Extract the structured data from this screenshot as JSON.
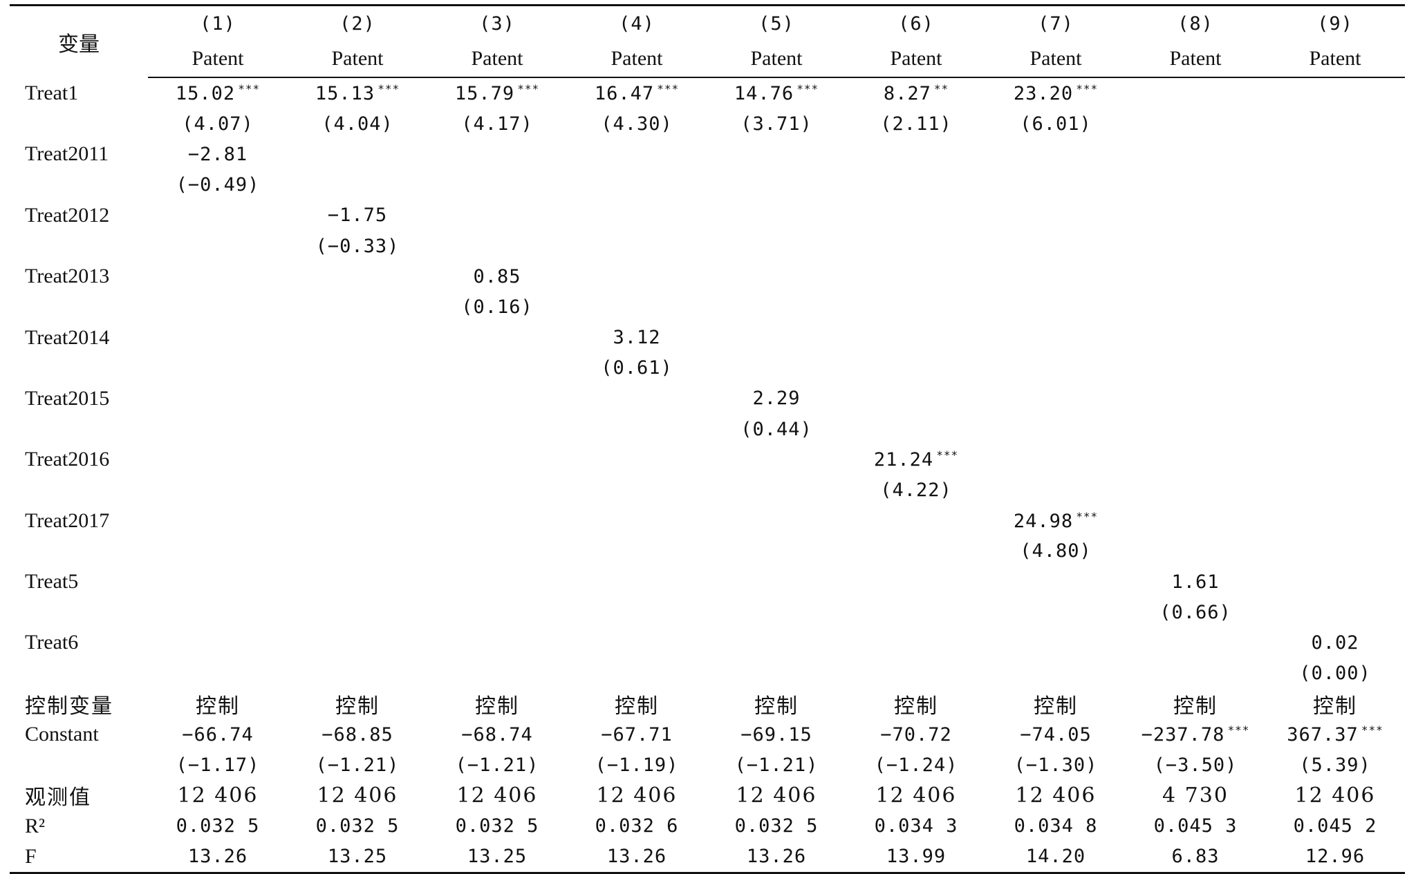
{
  "header": {
    "variable_label": "变量",
    "columns": [
      {
        "num": "(1)",
        "dep": "Patent"
      },
      {
        "num": "(2)",
        "dep": "Patent"
      },
      {
        "num": "(3)",
        "dep": "Patent"
      },
      {
        "num": "(4)",
        "dep": "Patent"
      },
      {
        "num": "(5)",
        "dep": "Patent"
      },
      {
        "num": "(6)",
        "dep": "Patent"
      },
      {
        "num": "(7)",
        "dep": "Patent"
      },
      {
        "num": "(8)",
        "dep": "Patent"
      },
      {
        "num": "(9)",
        "dep": "Patent"
      }
    ]
  },
  "rows": [
    {
      "label": "Treat1",
      "cells": [
        {
          "v": "15.02",
          "s": "***"
        },
        {
          "v": "15.13",
          "s": "***"
        },
        {
          "v": "15.79",
          "s": "***"
        },
        {
          "v": "16.47",
          "s": "***"
        },
        {
          "v": "14.76",
          "s": "***"
        },
        {
          "v": "8.27",
          "s": "**"
        },
        {
          "v": "23.20",
          "s": "***"
        },
        {
          "v": ""
        },
        {
          "v": ""
        }
      ]
    },
    {
      "label": "",
      "cells": [
        {
          "v": "(4.07)"
        },
        {
          "v": "(4.04)"
        },
        {
          "v": "(4.17)"
        },
        {
          "v": "(4.30)"
        },
        {
          "v": "(3.71)"
        },
        {
          "v": "(2.11)"
        },
        {
          "v": "(6.01)"
        },
        {
          "v": ""
        },
        {
          "v": ""
        }
      ]
    },
    {
      "label": "Treat2011",
      "cells": [
        {
          "v": "−2.81"
        },
        {
          "v": ""
        },
        {
          "v": ""
        },
        {
          "v": ""
        },
        {
          "v": ""
        },
        {
          "v": ""
        },
        {
          "v": ""
        },
        {
          "v": ""
        },
        {
          "v": ""
        }
      ]
    },
    {
      "label": "",
      "cells": [
        {
          "v": "(−0.49)"
        },
        {
          "v": ""
        },
        {
          "v": ""
        },
        {
          "v": ""
        },
        {
          "v": ""
        },
        {
          "v": ""
        },
        {
          "v": ""
        },
        {
          "v": ""
        },
        {
          "v": ""
        }
      ]
    },
    {
      "label": "Treat2012",
      "cells": [
        {
          "v": ""
        },
        {
          "v": "−1.75"
        },
        {
          "v": ""
        },
        {
          "v": ""
        },
        {
          "v": ""
        },
        {
          "v": ""
        },
        {
          "v": ""
        },
        {
          "v": ""
        },
        {
          "v": ""
        }
      ]
    },
    {
      "label": "",
      "cells": [
        {
          "v": ""
        },
        {
          "v": "(−0.33)"
        },
        {
          "v": ""
        },
        {
          "v": ""
        },
        {
          "v": ""
        },
        {
          "v": ""
        },
        {
          "v": ""
        },
        {
          "v": ""
        },
        {
          "v": ""
        }
      ]
    },
    {
      "label": "Treat2013",
      "cells": [
        {
          "v": ""
        },
        {
          "v": ""
        },
        {
          "v": "0.85"
        },
        {
          "v": ""
        },
        {
          "v": ""
        },
        {
          "v": ""
        },
        {
          "v": ""
        },
        {
          "v": ""
        },
        {
          "v": ""
        }
      ]
    },
    {
      "label": "",
      "cells": [
        {
          "v": ""
        },
        {
          "v": ""
        },
        {
          "v": "(0.16)"
        },
        {
          "v": ""
        },
        {
          "v": ""
        },
        {
          "v": ""
        },
        {
          "v": ""
        },
        {
          "v": ""
        },
        {
          "v": ""
        }
      ]
    },
    {
      "label": "Treat2014",
      "cells": [
        {
          "v": ""
        },
        {
          "v": ""
        },
        {
          "v": ""
        },
        {
          "v": "3.12"
        },
        {
          "v": ""
        },
        {
          "v": ""
        },
        {
          "v": ""
        },
        {
          "v": ""
        },
        {
          "v": ""
        }
      ]
    },
    {
      "label": "",
      "cells": [
        {
          "v": ""
        },
        {
          "v": ""
        },
        {
          "v": ""
        },
        {
          "v": "(0.61)"
        },
        {
          "v": ""
        },
        {
          "v": ""
        },
        {
          "v": ""
        },
        {
          "v": ""
        },
        {
          "v": ""
        }
      ]
    },
    {
      "label": "Treat2015",
      "cells": [
        {
          "v": ""
        },
        {
          "v": ""
        },
        {
          "v": ""
        },
        {
          "v": ""
        },
        {
          "v": "2.29"
        },
        {
          "v": ""
        },
        {
          "v": ""
        },
        {
          "v": ""
        },
        {
          "v": ""
        }
      ]
    },
    {
      "label": "",
      "cells": [
        {
          "v": ""
        },
        {
          "v": ""
        },
        {
          "v": ""
        },
        {
          "v": ""
        },
        {
          "v": "(0.44)"
        },
        {
          "v": ""
        },
        {
          "v": ""
        },
        {
          "v": ""
        },
        {
          "v": ""
        }
      ]
    },
    {
      "label": "Treat2016",
      "cells": [
        {
          "v": ""
        },
        {
          "v": ""
        },
        {
          "v": ""
        },
        {
          "v": ""
        },
        {
          "v": ""
        },
        {
          "v": "21.24",
          "s": "***"
        },
        {
          "v": ""
        },
        {
          "v": ""
        },
        {
          "v": ""
        }
      ]
    },
    {
      "label": "",
      "cells": [
        {
          "v": ""
        },
        {
          "v": ""
        },
        {
          "v": ""
        },
        {
          "v": ""
        },
        {
          "v": ""
        },
        {
          "v": "(4.22)"
        },
        {
          "v": ""
        },
        {
          "v": ""
        },
        {
          "v": ""
        }
      ]
    },
    {
      "label": "Treat2017",
      "cells": [
        {
          "v": ""
        },
        {
          "v": ""
        },
        {
          "v": ""
        },
        {
          "v": ""
        },
        {
          "v": ""
        },
        {
          "v": ""
        },
        {
          "v": "24.98",
          "s": "***"
        },
        {
          "v": ""
        },
        {
          "v": ""
        }
      ]
    },
    {
      "label": "",
      "cells": [
        {
          "v": ""
        },
        {
          "v": ""
        },
        {
          "v": ""
        },
        {
          "v": ""
        },
        {
          "v": ""
        },
        {
          "v": ""
        },
        {
          "v": "(4.80)"
        },
        {
          "v": ""
        },
        {
          "v": ""
        }
      ]
    },
    {
      "label": "Treat5",
      "cells": [
        {
          "v": ""
        },
        {
          "v": ""
        },
        {
          "v": ""
        },
        {
          "v": ""
        },
        {
          "v": ""
        },
        {
          "v": ""
        },
        {
          "v": ""
        },
        {
          "v": "1.61"
        },
        {
          "v": ""
        }
      ]
    },
    {
      "label": "",
      "cells": [
        {
          "v": ""
        },
        {
          "v": ""
        },
        {
          "v": ""
        },
        {
          "v": ""
        },
        {
          "v": ""
        },
        {
          "v": ""
        },
        {
          "v": ""
        },
        {
          "v": "(0.66)"
        },
        {
          "v": ""
        }
      ]
    },
    {
      "label": "Treat6",
      "cells": [
        {
          "v": ""
        },
        {
          "v": ""
        },
        {
          "v": ""
        },
        {
          "v": ""
        },
        {
          "v": ""
        },
        {
          "v": ""
        },
        {
          "v": ""
        },
        {
          "v": ""
        },
        {
          "v": "0.02"
        }
      ]
    },
    {
      "label": "",
      "cells": [
        {
          "v": ""
        },
        {
          "v": ""
        },
        {
          "v": ""
        },
        {
          "v": ""
        },
        {
          "v": ""
        },
        {
          "v": ""
        },
        {
          "v": ""
        },
        {
          "v": ""
        },
        {
          "v": "(0.00)"
        }
      ]
    },
    {
      "label": "控制变量",
      "zh": true,
      "cells": [
        {
          "v": "控制"
        },
        {
          "v": "控制"
        },
        {
          "v": "控制"
        },
        {
          "v": "控制"
        },
        {
          "v": "控制"
        },
        {
          "v": "控制"
        },
        {
          "v": "控制"
        },
        {
          "v": "控制"
        },
        {
          "v": "控制"
        }
      ]
    },
    {
      "label": "Constant",
      "cells": [
        {
          "v": "−66.74"
        },
        {
          "v": "−68.85"
        },
        {
          "v": "−68.74"
        },
        {
          "v": "−67.71"
        },
        {
          "v": "−69.15"
        },
        {
          "v": "−70.72"
        },
        {
          "v": "−74.05"
        },
        {
          "v": "−237.78",
          "s": "***"
        },
        {
          "v": "367.37",
          "s": "***"
        }
      ]
    },
    {
      "label": "",
      "cells": [
        {
          "v": "(−1.17)"
        },
        {
          "v": "(−1.21)"
        },
        {
          "v": "(−1.21)"
        },
        {
          "v": "(−1.19)"
        },
        {
          "v": "(−1.21)"
        },
        {
          "v": "(−1.24)"
        },
        {
          "v": "(−1.30)"
        },
        {
          "v": "(−3.50)"
        },
        {
          "v": "(5.39)"
        }
      ]
    },
    {
      "label": "观测值",
      "zh": true,
      "cells": [
        {
          "v": "12 406"
        },
        {
          "v": "12 406"
        },
        {
          "v": "12 406"
        },
        {
          "v": "12 406"
        },
        {
          "v": "12 406"
        },
        {
          "v": "12 406"
        },
        {
          "v": "12 406"
        },
        {
          "v": "4 730"
        },
        {
          "v": "12 406"
        }
      ]
    },
    {
      "label": "R²",
      "cells": [
        {
          "v": "0.032 5"
        },
        {
          "v": "0.032 5"
        },
        {
          "v": "0.032 5"
        },
        {
          "v": "0.032 6"
        },
        {
          "v": "0.032 5"
        },
        {
          "v": "0.034 3"
        },
        {
          "v": "0.034 8"
        },
        {
          "v": "0.045 3"
        },
        {
          "v": "0.045 2"
        }
      ]
    },
    {
      "label": "F",
      "cells": [
        {
          "v": "13.26"
        },
        {
          "v": "13.25"
        },
        {
          "v": "13.25"
        },
        {
          "v": "13.26"
        },
        {
          "v": "13.26"
        },
        {
          "v": "13.99"
        },
        {
          "v": "14.20"
        },
        {
          "v": "6.83"
        },
        {
          "v": "12.96"
        }
      ]
    }
  ]
}
